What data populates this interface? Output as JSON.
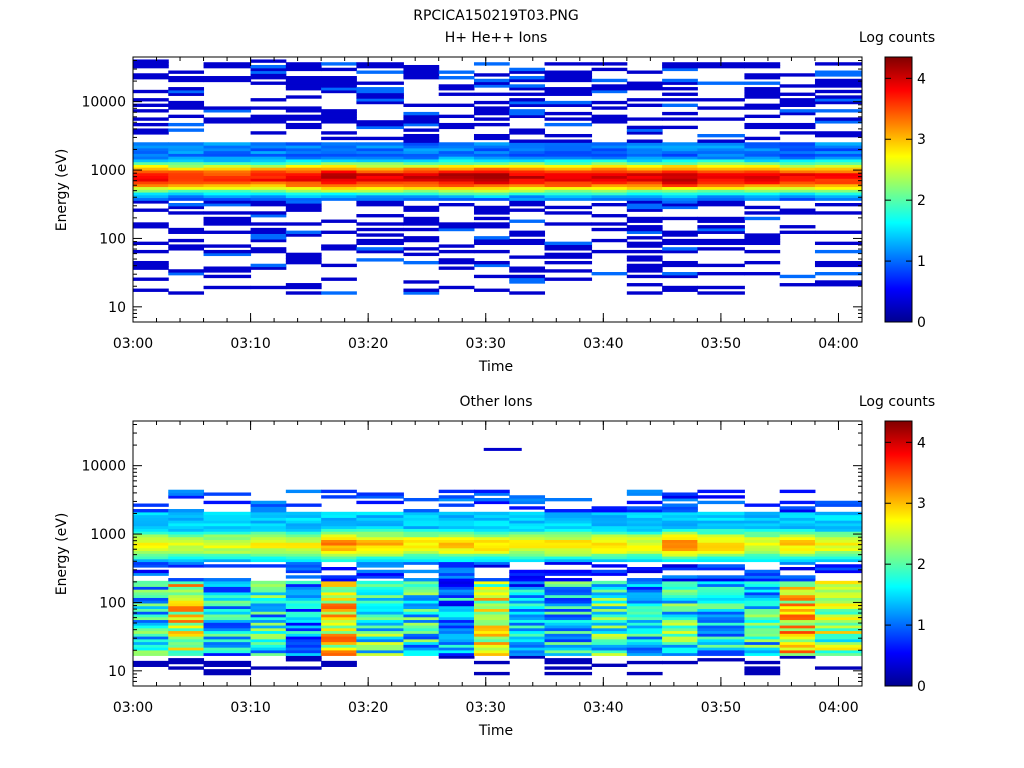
{
  "figure_title": "RPCICA150219T03.PNG",
  "chart_data": [
    {
      "type": "heatmap",
      "id": "top",
      "title": "H+ He++ Ions",
      "xlabel": "Time",
      "ylabel": "Energy (eV)",
      "yscale": "log",
      "ylim": [
        6,
        45000
      ],
      "xlim": [
        "03:00",
        "04:02"
      ],
      "xticks": [
        "03:00",
        "03:10",
        "03:20",
        "03:30",
        "03:40",
        "03:50",
        "04:00"
      ],
      "yticks": [
        "10",
        "100",
        "1000",
        "10000"
      ],
      "colorbar": {
        "label": "Log counts",
        "range": [
          0,
          4.35
        ],
        "ticks": [
          "0",
          "1",
          "2",
          "3",
          "4"
        ]
      },
      "time_bins_start": [
        "03:00",
        "03:03",
        "03:06",
        "03:10",
        "03:13",
        "03:16",
        "03:19",
        "03:23",
        "03:26",
        "03:29",
        "03:32",
        "03:35",
        "03:39",
        "03:42",
        "03:45",
        "03:48",
        "03:52",
        "03:55",
        "03:58"
      ],
      "core_band": {
        "energy_range_eV": [
          350,
          2500
        ],
        "peak_energy_eV": 780,
        "peak_log_counts": [
          3.8,
          3.6,
          3.6,
          3.7,
          3.8,
          4.0,
          3.9,
          3.9,
          4.1,
          4.1,
          3.9,
          3.9,
          4.0,
          3.9,
          4.1,
          3.9,
          3.9,
          3.8,
          3.7
        ]
      },
      "scatter_levels": {
        "typical_log_counts": 0.3,
        "energy_range_eV": [
          15,
          42000
        ]
      }
    },
    {
      "type": "heatmap",
      "id": "bottom",
      "title": "Other Ions",
      "xlabel": "Time",
      "ylabel": "Energy (eV)",
      "yscale": "log",
      "ylim": [
        6,
        45000
      ],
      "xlim": [
        "03:00",
        "04:02"
      ],
      "xticks": [
        "03:00",
        "03:10",
        "03:20",
        "03:30",
        "03:40",
        "03:50",
        "04:00"
      ],
      "yticks": [
        "10",
        "100",
        "1000",
        "10000"
      ],
      "colorbar": {
        "label": "Log counts",
        "range": [
          0,
          4.35
        ],
        "ticks": [
          "0",
          "1",
          "2",
          "3",
          "4"
        ]
      },
      "time_bins_start": [
        "03:00",
        "03:03",
        "03:06",
        "03:10",
        "03:13",
        "03:16",
        "03:19",
        "03:23",
        "03:26",
        "03:29",
        "03:32",
        "03:35",
        "03:39",
        "03:42",
        "03:45",
        "03:48",
        "03:52",
        "03:55",
        "03:58"
      ],
      "high_band": {
        "energy_range_eV": [
          400,
          2000
        ],
        "peak_energy_eV": 700,
        "peak_log_counts": [
          2.6,
          2.4,
          2.5,
          2.6,
          2.6,
          3.1,
          2.9,
          2.7,
          2.9,
          2.8,
          2.7,
          2.7,
          2.8,
          2.6,
          3.1,
          2.8,
          2.6,
          2.8,
          2.6
        ]
      },
      "low_band": {
        "energy_range_eV": [
          16,
          200
        ],
        "mean_log_counts": [
          1.6,
          2.6,
          1.4,
          1.6,
          1.2,
          2.7,
          1.8,
          1.6,
          1.2,
          2.4,
          1.2,
          1.5,
          1.8,
          1.4,
          1.8,
          1.4,
          1.6,
          2.8,
          2.2
        ]
      },
      "isolated_points": [
        {
          "time": "03:30",
          "energy_eV": 17000,
          "log_counts": 0.3
        }
      ]
    }
  ]
}
